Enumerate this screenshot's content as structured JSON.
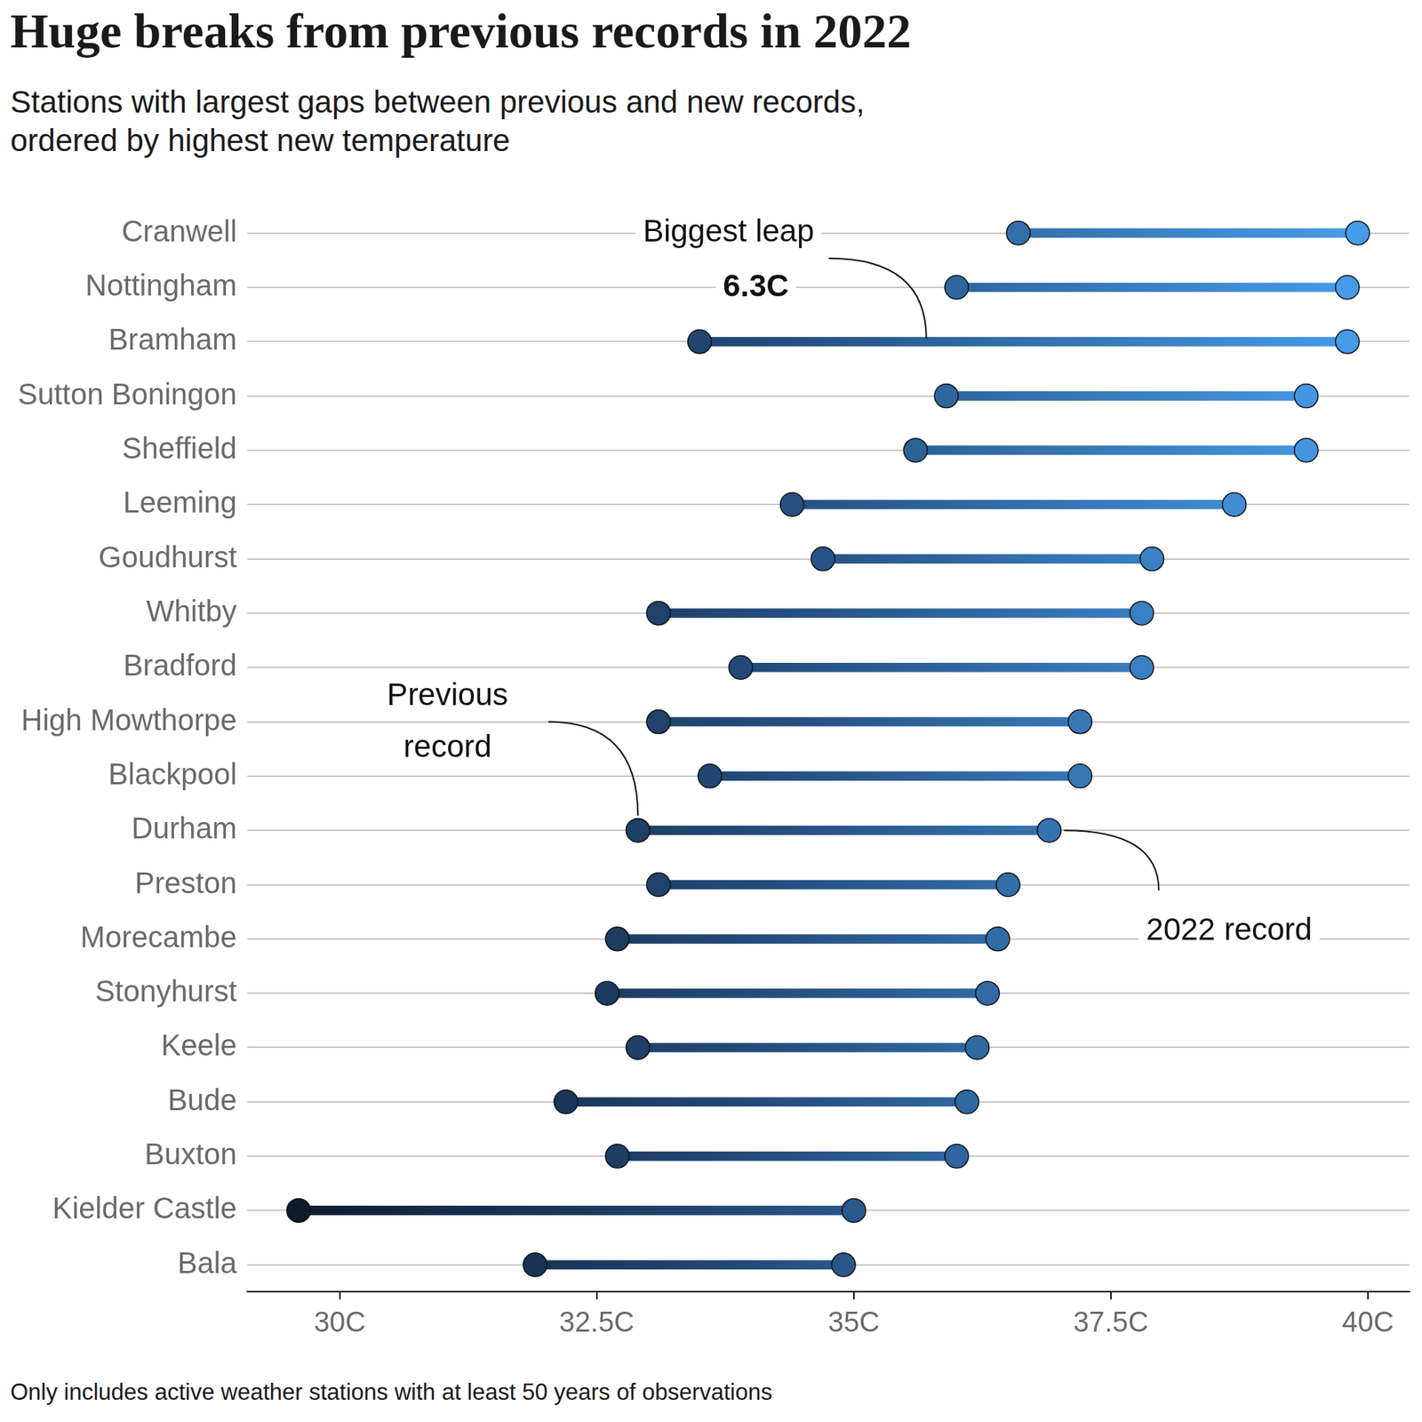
{
  "chart_data": {
    "type": "dumbbell",
    "orientation": "horizontal",
    "title": "Huge breaks from previous records in 2022",
    "subtitle": "Stations with largest gaps between previous and new records, ordered by highest new temperature",
    "footnote": "Only includes active weather stations with at least 50 years of observations",
    "categories": [
      "Cranwell",
      "Nottingham",
      "Bramham",
      "Sutton Boningon",
      "Sheffield",
      "Leeming",
      "Goudhurst",
      "Whitby",
      "Bradford",
      "High Mowthorpe",
      "Blackpool",
      "Durham",
      "Preston",
      "Morecambe",
      "Stonyhurst",
      "Keele",
      "Bude",
      "Buxton",
      "Kielder Castle",
      "Bala"
    ],
    "series": [
      {
        "name": "Previous record",
        "values": [
          36.6,
          36.0,
          33.5,
          35.9,
          35.6,
          34.4,
          34.7,
          33.1,
          33.9,
          33.1,
          33.6,
          32.9,
          33.1,
          32.7,
          32.6,
          32.9,
          32.2,
          32.7,
          29.6,
          31.9
        ]
      },
      {
        "name": "2022 record",
        "values": [
          39.9,
          39.8,
          39.8,
          39.4,
          39.4,
          38.7,
          37.9,
          37.8,
          37.8,
          37.2,
          37.2,
          36.9,
          36.5,
          36.4,
          36.3,
          36.2,
          36.1,
          36.0,
          35.0,
          34.9
        ]
      }
    ],
    "xlim": [
      29.1,
      40.4
    ],
    "xticks": [
      {
        "value": 30,
        "label": "30C"
      },
      {
        "value": 32.5,
        "label": "32.5C"
      },
      {
        "value": 35,
        "label": "35C"
      },
      {
        "value": 37.5,
        "label": "37.5C"
      },
      {
        "value": 40,
        "label": "40C"
      }
    ],
    "grid": true,
    "annotations": [
      {
        "text": "Biggest leap",
        "category": "Bramham",
        "value": 6.3,
        "value_label": "6.3C"
      },
      {
        "series": "Previous record",
        "category": "Durham"
      },
      {
        "series": "2022 record",
        "category": "Durham"
      }
    ]
  }
}
